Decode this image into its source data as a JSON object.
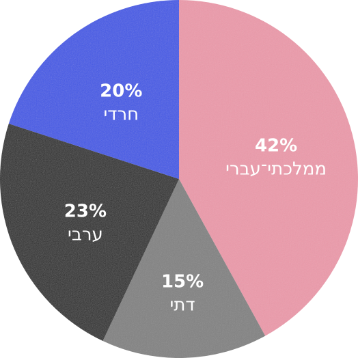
{
  "chart_data": {
    "type": "pie",
    "slices": [
      {
        "label": "ממלכתי־עברי",
        "value": 42,
        "display": "42%",
        "color": "#ec9aaa"
      },
      {
        "label": "דתי",
        "value": 15,
        "display": "15%",
        "color": "#828282"
      },
      {
        "label": "ערבי",
        "value": 23,
        "display": "23%",
        "color": "#2f2f2f"
      },
      {
        "label": "חרדי",
        "value": 20,
        "display": "20%",
        "color": "#4258e6"
      }
    ],
    "start_angle_deg": 0,
    "direction": "clockwise"
  }
}
